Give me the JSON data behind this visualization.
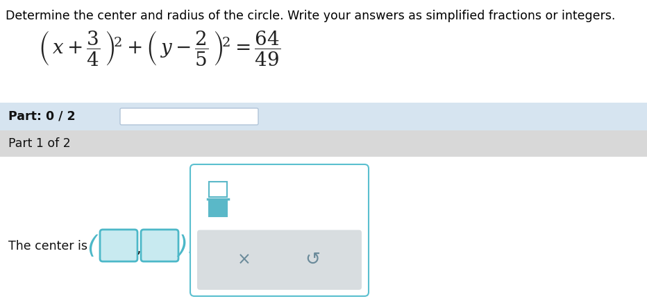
{
  "title": "Determine the center and radius of the circle. Write your answers as simplified fractions or integers.",
  "title_color": "#000000",
  "title_fontsize": 12.5,
  "bg_color": "#ffffff",
  "part_bar_color": "#d6e4f0",
  "part1_bg_color": "#d8d8d8",
  "input_box_color": "#4db8c8",
  "input_box_fill": "#c8eaf0",
  "panel_border_color": "#5abfcf",
  "panel_bg": "#ffffff",
  "gray_panel_bg": "#d8dde0",
  "progress_bar_fill": "#ffffff",
  "progress_bar_border": "#b0c4d8",
  "part_label": "Part: 0 / 2",
  "part1_label": "Part 1 of 2",
  "center_label": "The center is",
  "frac_border": "#5ab8c8",
  "frac_fill_bottom": "#5ab8c8",
  "icon_color": "#6a8a9a",
  "eq_color": "#222222"
}
